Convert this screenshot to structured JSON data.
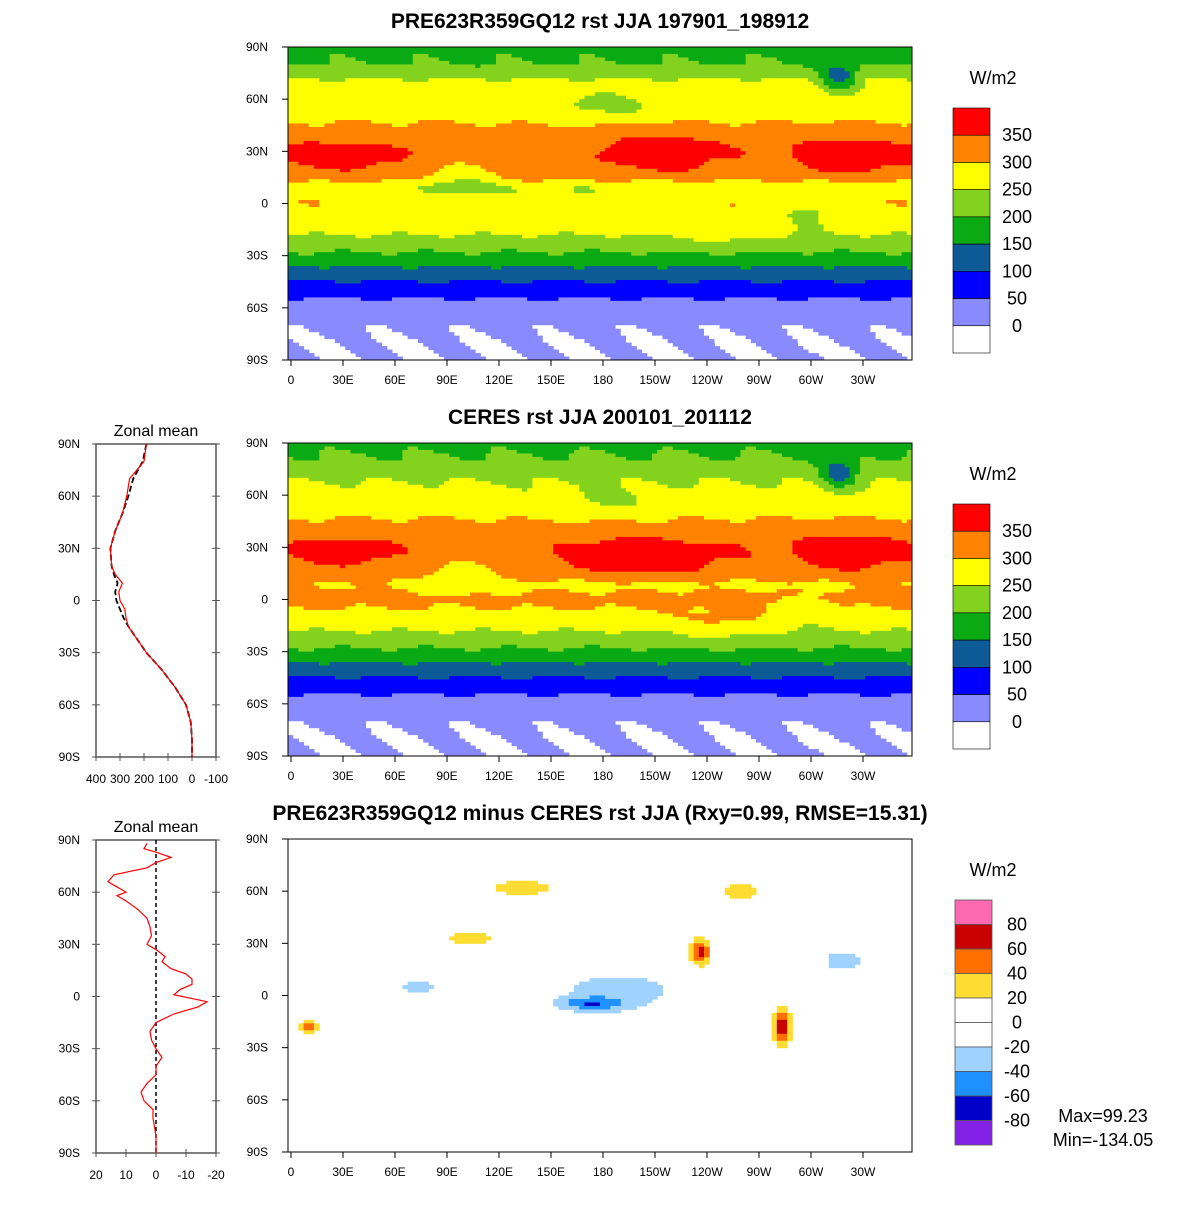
{
  "chart_data": [
    {
      "type": "heatmap",
      "title": "PRE623R359GQ12 rst JJA 197901_198912",
      "units": "W/m2",
      "levels": [
        0,
        50,
        100,
        150,
        200,
        250,
        300,
        350
      ],
      "level_labels": [
        "350",
        "300",
        "250",
        "200",
        "150",
        "100",
        "50",
        "0"
      ],
      "colors": [
        "#ffffff",
        "#8a8aff",
        "#0000ff",
        "#0c5a96",
        "#0aaa14",
        "#82d21e",
        "#ffff00",
        "#ff8200",
        "#ff0000"
      ],
      "zonal_ref": "model",
      "features": [
        {
          "lon": 215,
          "lat": 30,
          "slon": 30,
          "slat": 10,
          "amp": 60
        },
        {
          "lon": 320,
          "lat": 28,
          "slon": 25,
          "slat": 10,
          "amp": 60
        },
        {
          "lon": 30,
          "lat": 28,
          "slon": 30,
          "slat": 8,
          "amp": 45
        },
        {
          "lon": 180,
          "lat": 7,
          "slon": 200,
          "slat": 5,
          "amp": -45
        },
        {
          "lon": 100,
          "lat": 15,
          "slon": 20,
          "slat": 10,
          "amp": -60
        },
        {
          "lon": 318,
          "lat": 72,
          "slon": 10,
          "slat": 8,
          "amp": -120
        },
        {
          "lon": 180,
          "lat": 55,
          "slon": 40,
          "slat": 8,
          "amp": -40
        },
        {
          "lon": 250,
          "lat": -15,
          "slon": 25,
          "slat": 8,
          "amp": 30
        },
        {
          "lon": 300,
          "lat": -5,
          "slon": 15,
          "slat": 10,
          "amp": -40
        }
      ]
    },
    {
      "type": "heatmap",
      "title": "CERES rst JJA 200101_201112",
      "units": "W/m2",
      "levels": [
        0,
        50,
        100,
        150,
        200,
        250,
        300,
        350
      ],
      "level_labels": [
        "350",
        "300",
        "250",
        "200",
        "150",
        "100",
        "50",
        "0"
      ],
      "colors": [
        "#ffffff",
        "#8a8aff",
        "#0000ff",
        "#0c5a96",
        "#0aaa14",
        "#82d21e",
        "#ffff00",
        "#ff8200",
        "#ff0000"
      ],
      "zonal_ref": "ceres",
      "features": [
        {
          "lon": 205,
          "lat": 25,
          "slon": 40,
          "slat": 10,
          "amp": 60
        },
        {
          "lon": 320,
          "lat": 28,
          "slon": 25,
          "slat": 10,
          "amp": 60
        },
        {
          "lon": 30,
          "lat": 28,
          "slon": 30,
          "slat": 8,
          "amp": 40
        },
        {
          "lon": 180,
          "lat": 7,
          "slon": 200,
          "slat": 5,
          "amp": -25
        },
        {
          "lon": 100,
          "lat": 15,
          "slon": 20,
          "slat": 10,
          "amp": -55
        },
        {
          "lon": 318,
          "lat": 72,
          "slon": 10,
          "slat": 8,
          "amp": -120
        },
        {
          "lon": 180,
          "lat": 55,
          "slon": 40,
          "slat": 8,
          "amp": -30
        },
        {
          "lon": 250,
          "lat": -15,
          "slon": 25,
          "slat": 8,
          "amp": 35
        },
        {
          "lon": 300,
          "lat": -5,
          "slon": 15,
          "slat": 10,
          "amp": -30
        }
      ]
    },
    {
      "type": "heatmap",
      "title": "PRE623R359GQ12 minus CERES rst JJA (Rxy=0.99, RMSE=15.31)",
      "units": "W/m2",
      "levels": [
        -80,
        -60,
        -40,
        -20,
        0,
        20,
        40,
        60,
        80
      ],
      "level_labels": [
        "80",
        "60",
        "40",
        "20",
        "0",
        "-20",
        "-40",
        "-60",
        "-80"
      ],
      "colors": [
        "#8220e6",
        "#0000c8",
        "#1e90ff",
        "#a0d2ff",
        "#ffffff",
        "#ffffff",
        "#ffdc32",
        "#ff6e00",
        "#c80000",
        "#ff69b4"
      ],
      "max_label": "Max=99.23",
      "min_label": "Min=-134.05",
      "features": [
        {
          "lon": 190,
          "lat": 3,
          "slon": 40,
          "slat": 12,
          "amp": -30
        },
        {
          "lon": 175,
          "lat": -5,
          "slon": 20,
          "slat": 4,
          "amp": -45
        },
        {
          "lon": 238,
          "lat": 25,
          "slon": 6,
          "slat": 8,
          "amp": 65
        },
        {
          "lon": 285,
          "lat": -18,
          "slon": 5,
          "slat": 10,
          "amp": 75
        },
        {
          "lon": 12,
          "lat": -18,
          "slon": 6,
          "slat": 5,
          "amp": 45
        },
        {
          "lon": 320,
          "lat": 20,
          "slon": 20,
          "slat": 10,
          "amp": -25
        },
        {
          "lon": 105,
          "lat": 33,
          "slon": 25,
          "slat": 8,
          "amp": 25
        },
        {
          "lon": 135,
          "lat": 62,
          "slon": 30,
          "slat": 8,
          "amp": 25
        },
        {
          "lon": 260,
          "lat": 60,
          "slon": 20,
          "slat": 8,
          "amp": 25
        },
        {
          "lon": 75,
          "lat": 5,
          "slon": 20,
          "slat": 6,
          "amp": -25
        }
      ]
    },
    {
      "type": "line",
      "title": "Zonal mean",
      "xlim": [
        400,
        -100
      ],
      "xticks": [
        "400",
        "300",
        "200",
        "100",
        "0",
        "-100"
      ],
      "lat": [
        90,
        80,
        70,
        60,
        50,
        40,
        30,
        20,
        15,
        10,
        5,
        0,
        -5,
        -10,
        -15,
        -20,
        -30,
        -40,
        -50,
        -60,
        -70,
        -80,
        -90
      ],
      "series": [
        {
          "name": "model",
          "color": "#ff0000",
          "values": [
            190,
            200,
            260,
            272,
            290,
            320,
            340,
            335,
            320,
            290,
            305,
            300,
            280,
            275,
            265,
            240,
            190,
            125,
            70,
            25,
            5,
            0,
            0
          ]
        },
        {
          "name": "ceres",
          "color": "#000000",
          "values": [
            190,
            205,
            245,
            265,
            290,
            320,
            340,
            335,
            325,
            310,
            320,
            315,
            300,
            285,
            265,
            240,
            190,
            125,
            70,
            25,
            5,
            0,
            0
          ]
        }
      ]
    },
    {
      "type": "line",
      "title": "Zonal mean",
      "xlim": [
        20,
        -20
      ],
      "xticks": [
        "20",
        "10",
        "0",
        "-10",
        "-20"
      ],
      "lat": [
        88,
        85,
        83,
        80,
        77,
        74,
        70,
        66,
        63,
        60,
        58,
        55,
        50,
        45,
        40,
        35,
        30,
        27,
        23,
        20,
        16,
        13,
        10,
        7,
        4,
        1,
        -3,
        -6,
        -10,
        -15,
        -20,
        -25,
        -30,
        -35,
        -40,
        -45,
        -50,
        -55,
        -60,
        -65,
        -70,
        -75,
        -80,
        -90
      ],
      "series": [
        {
          "name": "diff",
          "color": "#ff0000",
          "values": [
            3,
            4,
            0,
            -5,
            0,
            3,
            14,
            16,
            13,
            10,
            13,
            10,
            6,
            3,
            2,
            1.5,
            3,
            0,
            -3,
            -2,
            -5,
            -10,
            -12,
            -12,
            -8,
            -6,
            -17,
            -14,
            -6,
            0,
            2,
            1.5,
            0,
            -2,
            0,
            0,
            3,
            5,
            4,
            1,
            1,
            0.5,
            0,
            0
          ]
        }
      ]
    }
  ],
  "axes": {
    "lat_ticks": [
      "90N",
      "60N",
      "30N",
      "0",
      "30S",
      "60S",
      "90S"
    ],
    "lon_ticks": [
      "0",
      "30E",
      "60E",
      "90E",
      "120E",
      "150E",
      "180",
      "150W",
      "120W",
      "90W",
      "60W",
      "30W"
    ]
  }
}
